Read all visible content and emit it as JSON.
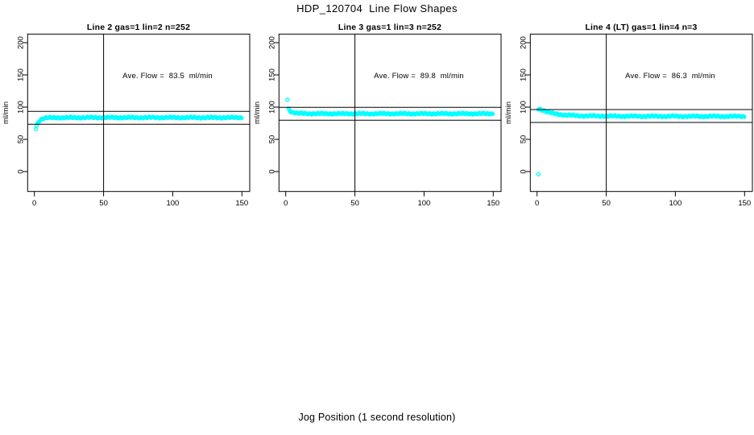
{
  "figure": {
    "title": "HDP_120704  Line Flow Shapes",
    "xlabel": "Jog Position (1 second resolution)",
    "background_color": "#ffffff",
    "axis_color": "#000000",
    "point_color": "#00ffff"
  },
  "chart_data": [
    {
      "type": "scatter",
      "title": "Line 2 gas=1 lin=2 n=252",
      "annotation": "Ave. Flow =  83.5  ml/min",
      "ave_flow": 83.5,
      "n_points": 252,
      "ylabel": "ml/min",
      "xticks": [
        0,
        50,
        100,
        150
      ],
      "yticks": [
        0,
        50,
        100,
        150,
        200
      ],
      "xlim": [
        0,
        150
      ],
      "ylim": [
        0,
        200
      ],
      "vline_x": 50,
      "ref_lines": [
        93.5,
        73.5
      ],
      "profile": [
        [
          1,
          67
        ],
        [
          1.6,
          71
        ],
        [
          2.2,
          74.5
        ],
        [
          3,
          77.5
        ],
        [
          4,
          80
        ],
        [
          5,
          81.3
        ],
        [
          6.5,
          82.4
        ],
        [
          8,
          83
        ],
        [
          10,
          83.4
        ],
        [
          14,
          83.6
        ],
        [
          20,
          83.7
        ],
        [
          40,
          83.8
        ],
        [
          80,
          83.8
        ],
        [
          150,
          83.8
        ]
      ],
      "outliers": [],
      "sampling": {
        "start": 1,
        "end": 150,
        "step": 0.6
      }
    },
    {
      "type": "scatter",
      "title": "Line 3 gas=1 lin=3 n=252",
      "annotation": "Ave. Flow =  89.8  ml/min",
      "ave_flow": 89.8,
      "n_points": 252,
      "ylabel": "ml/min",
      "xticks": [
        0,
        50,
        100,
        150
      ],
      "yticks": [
        0,
        50,
        100,
        150,
        200
      ],
      "xlim": [
        0,
        150
      ],
      "ylim": [
        0,
        200
      ],
      "vline_x": 50,
      "ref_lines": [
        99.8,
        79.8
      ],
      "profile": [
        [
          2,
          97.5
        ],
        [
          2.6,
          95.5
        ],
        [
          3.3,
          94
        ],
        [
          4,
          93
        ],
        [
          5,
          92
        ],
        [
          6.5,
          91.2
        ],
        [
          8,
          90.7
        ],
        [
          10,
          90.3
        ],
        [
          14,
          90
        ],
        [
          20,
          89.9
        ],
        [
          40,
          89.8
        ],
        [
          80,
          89.8
        ],
        [
          150,
          89.8
        ]
      ],
      "outliers": [
        [
          1.2,
          111.5
        ]
      ],
      "sampling": {
        "start": 2,
        "end": 150,
        "step": 0.6
      }
    },
    {
      "type": "scatter",
      "title": "Line 4 (LT) gas=1 lin=4 n=3",
      "annotation": "Ave. Flow =  86.3  ml/min",
      "ave_flow": 86.3,
      "n_points": 3,
      "ylabel": "ml/min",
      "xticks": [
        0,
        50,
        100,
        150
      ],
      "yticks": [
        0,
        50,
        100,
        150,
        200
      ],
      "xlim": [
        0,
        150
      ],
      "ylim": [
        0,
        200
      ],
      "vline_x": 50,
      "ref_lines": [
        96.3,
        76.3
      ],
      "profile": [
        [
          1,
          97.5
        ],
        [
          2,
          97
        ],
        [
          3,
          96.3
        ],
        [
          4,
          95.5
        ],
        [
          5,
          94.6
        ],
        [
          6.5,
          93.3
        ],
        [
          8,
          92.2
        ],
        [
          10,
          91
        ],
        [
          13,
          89.7
        ],
        [
          16,
          88.7
        ],
        [
          20,
          87.8
        ],
        [
          25,
          87.1
        ],
        [
          30,
          86.6
        ],
        [
          40,
          86.2
        ],
        [
          60,
          85.9
        ],
        [
          100,
          85.7
        ],
        [
          150,
          85.6
        ]
      ],
      "outliers": [
        [
          1,
          -4
        ]
      ],
      "sampling": {
        "start": 1,
        "end": 150,
        "step": 0.6
      }
    }
  ]
}
